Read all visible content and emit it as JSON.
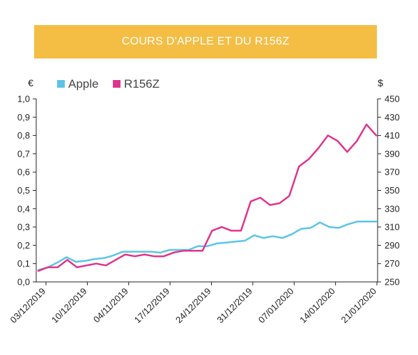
{
  "colors": {
    "banner": "#F4BE45",
    "apple": "#5BC4E6",
    "r156z": "#E0338C",
    "axis": "#222222"
  },
  "chart_data": {
    "type": "line",
    "title": "COURS D'APPLE ET DU R156Z",
    "left_axis": {
      "unit": "€",
      "ylim": [
        0,
        1
      ],
      "ticks": [
        "0,0",
        "0,1",
        "0,2",
        "0,3",
        "0,4",
        "0,5",
        "0,6",
        "0,7",
        "0,8",
        "0,9",
        "1,0"
      ]
    },
    "right_axis": {
      "unit": "$",
      "ylim": [
        250,
        450
      ],
      "ticks": [
        "250",
        "270",
        "290",
        "310",
        "330",
        "350",
        "370",
        "390",
        "410",
        "430",
        "450"
      ]
    },
    "x_tick_labels": [
      "03/12/2019",
      "10/12/2019",
      "04/11/2019",
      "17/12/2019",
      "24/12/2019",
      "31/12/2019",
      "07/01/2020",
      "14/01/2020",
      "21/01/2020"
    ],
    "legend": {
      "position": "top-left",
      "entries": [
        "Apple",
        "R156Z"
      ]
    },
    "grid": false,
    "series": [
      {
        "name": "Apple",
        "axis": "right",
        "values": [
          263,
          266,
          271,
          277,
          272,
          273,
          275,
          276,
          279,
          283,
          283,
          283,
          283,
          282,
          285,
          285,
          285,
          289,
          289,
          292,
          293,
          294,
          295,
          301,
          298,
          300,
          298,
          302,
          308,
          309,
          315,
          310,
          309,
          313,
          316,
          316,
          316
        ]
      },
      {
        "name": "R156Z",
        "axis": "left",
        "values": [
          0.06,
          0.08,
          0.08,
          0.12,
          0.08,
          0.09,
          0.1,
          0.09,
          0.12,
          0.15,
          0.14,
          0.15,
          0.14,
          0.14,
          0.16,
          0.17,
          0.17,
          0.17,
          0.28,
          0.3,
          0.28,
          0.28,
          0.44,
          0.46,
          0.42,
          0.43,
          0.47,
          0.63,
          0.67,
          0.73,
          0.8,
          0.77,
          0.71,
          0.77,
          0.86,
          0.8
        ]
      }
    ]
  }
}
